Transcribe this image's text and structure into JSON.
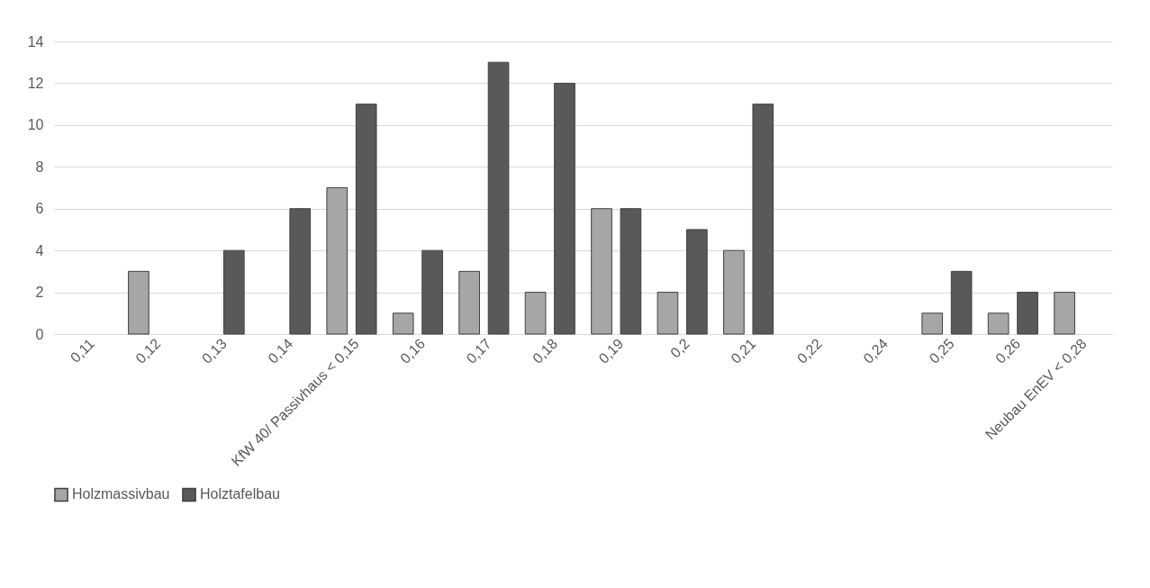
{
  "chart_data": {
    "type": "bar",
    "categories": [
      "0,11",
      "0,12",
      "0,13",
      "0,14",
      "KfW 40/ Passivhaus < 0,15",
      "0,16",
      "0,17",
      "0,18",
      "0,19",
      "0,2",
      "0,21",
      "0,22",
      "0,24",
      "0,25",
      "0,26",
      "Neubau EnEV < 0,28"
    ],
    "series": [
      {
        "name": "Holzmassivbau",
        "color": "#a6a6a6",
        "values": [
          null,
          3,
          null,
          null,
          7,
          1,
          3,
          2,
          6,
          2,
          4,
          null,
          null,
          1,
          1,
          2
        ]
      },
      {
        "name": "Holztafelbau",
        "color": "#595959",
        "values": [
          null,
          null,
          4,
          6,
          11,
          4,
          13,
          12,
          6,
          5,
          11,
          null,
          null,
          3,
          2,
          null
        ]
      }
    ],
    "ylim": [
      0,
      14
    ],
    "yticks": [
      0,
      2,
      4,
      6,
      8,
      10,
      12,
      14
    ],
    "grid": "y",
    "legend": "bottom"
  }
}
